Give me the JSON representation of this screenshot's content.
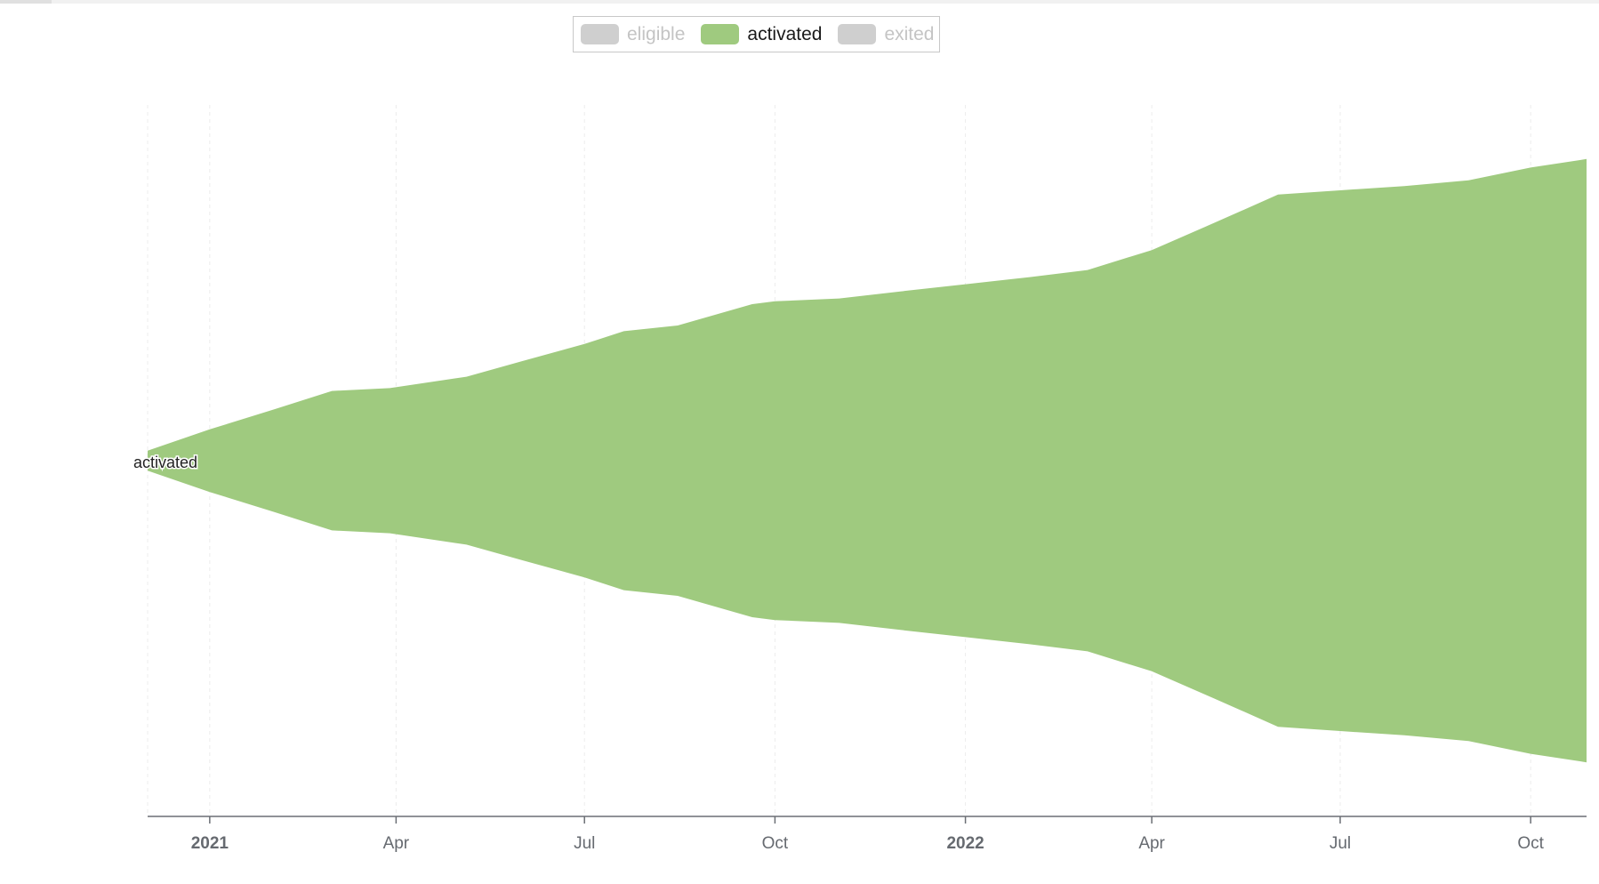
{
  "legend": {
    "items": [
      {
        "label": "eligible",
        "active": false,
        "color": "#cfcfcf",
        "text_color": "#c4c4c4"
      },
      {
        "label": "activated",
        "active": true,
        "color": "#9fca7f",
        "text_color": "#1a1a1a"
      },
      {
        "label": "exited",
        "active": false,
        "color": "#cfcfcf",
        "text_color": "#c4c4c4"
      }
    ]
  },
  "chart_data": {
    "type": "area",
    "layout": "streamgraph",
    "x_scale": "time",
    "xlim": [
      "2020-12-02",
      "2022-10-28"
    ],
    "ylim": [
      -1,
      1
    ],
    "y_axis_labels": false,
    "grid": {
      "vertical": true,
      "horizontal": false
    },
    "legend_position": "top-center",
    "x_ticks": [
      {
        "date": "2021-01-01",
        "label": "2021",
        "major": true
      },
      {
        "date": "2021-04-01",
        "label": "Apr",
        "major": false
      },
      {
        "date": "2021-07-01",
        "label": "Jul",
        "major": false
      },
      {
        "date": "2021-10-01",
        "label": "Oct",
        "major": false
      },
      {
        "date": "2022-01-01",
        "label": "2022",
        "major": true
      },
      {
        "date": "2022-04-01",
        "label": "Apr",
        "major": false
      },
      {
        "date": "2022-07-01",
        "label": "Jul",
        "major": false
      },
      {
        "date": "2022-10-01",
        "label": "Oct",
        "major": false
      }
    ],
    "series": [
      {
        "name": "activated",
        "color": "#9fca7f",
        "label": "activated",
        "points": [
          {
            "date": "2020-12-02",
            "value": 0.035
          },
          {
            "date": "2021-01-01",
            "value": 0.11
          },
          {
            "date": "2021-02-01",
            "value": 0.18
          },
          {
            "date": "2021-03-01",
            "value": 0.245
          },
          {
            "date": "2021-03-29",
            "value": 0.255
          },
          {
            "date": "2021-05-05",
            "value": 0.295
          },
          {
            "date": "2021-06-01",
            "value": 0.35
          },
          {
            "date": "2021-07-01",
            "value": 0.41
          },
          {
            "date": "2021-07-20",
            "value": 0.455
          },
          {
            "date": "2021-08-15",
            "value": 0.475
          },
          {
            "date": "2021-09-20",
            "value": 0.55
          },
          {
            "date": "2021-10-01",
            "value": 0.56
          },
          {
            "date": "2021-11-01",
            "value": 0.57
          },
          {
            "date": "2021-12-01",
            "value": 0.595
          },
          {
            "date": "2022-01-01",
            "value": 0.62
          },
          {
            "date": "2022-02-01",
            "value": 0.645
          },
          {
            "date": "2022-03-01",
            "value": 0.67
          },
          {
            "date": "2022-04-01",
            "value": 0.74
          },
          {
            "date": "2022-05-01",
            "value": 0.835
          },
          {
            "date": "2022-06-01",
            "value": 0.935
          },
          {
            "date": "2022-07-01",
            "value": 0.95
          },
          {
            "date": "2022-08-01",
            "value": 0.965
          },
          {
            "date": "2022-09-01",
            "value": 0.985
          },
          {
            "date": "2022-10-01",
            "value": 1.03
          },
          {
            "date": "2022-10-28",
            "value": 1.06
          }
        ]
      }
    ]
  }
}
